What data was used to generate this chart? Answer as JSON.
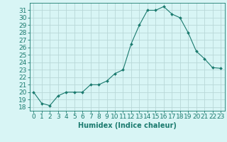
{
  "x": [
    0,
    1,
    2,
    3,
    4,
    5,
    6,
    7,
    8,
    9,
    10,
    11,
    12,
    13,
    14,
    15,
    16,
    17,
    18,
    19,
    20,
    21,
    22,
    23
  ],
  "y": [
    20,
    18.5,
    18.2,
    19.5,
    20,
    20,
    20,
    21,
    21,
    21.5,
    22.5,
    23,
    26.5,
    29,
    31,
    31,
    31.5,
    30.5,
    30,
    28,
    25.5,
    24.5,
    23.3,
    23.2
  ],
  "line_color": "#1a7a6e",
  "marker": "D",
  "marker_size": 2,
  "bg_color": "#d8f5f5",
  "grid_color": "#b8d8d8",
  "xlabel": "Humidex (Indice chaleur)",
  "xlim": [
    -0.5,
    23.5
  ],
  "ylim": [
    17.5,
    32.0
  ],
  "yticks": [
    18,
    19,
    20,
    21,
    22,
    23,
    24,
    25,
    26,
    27,
    28,
    29,
    30,
    31
  ],
  "xticks": [
    0,
    1,
    2,
    3,
    4,
    5,
    6,
    7,
    8,
    9,
    10,
    11,
    12,
    13,
    14,
    15,
    16,
    17,
    18,
    19,
    20,
    21,
    22,
    23
  ],
  "xlabel_fontsize": 7,
  "tick_fontsize": 6.5
}
